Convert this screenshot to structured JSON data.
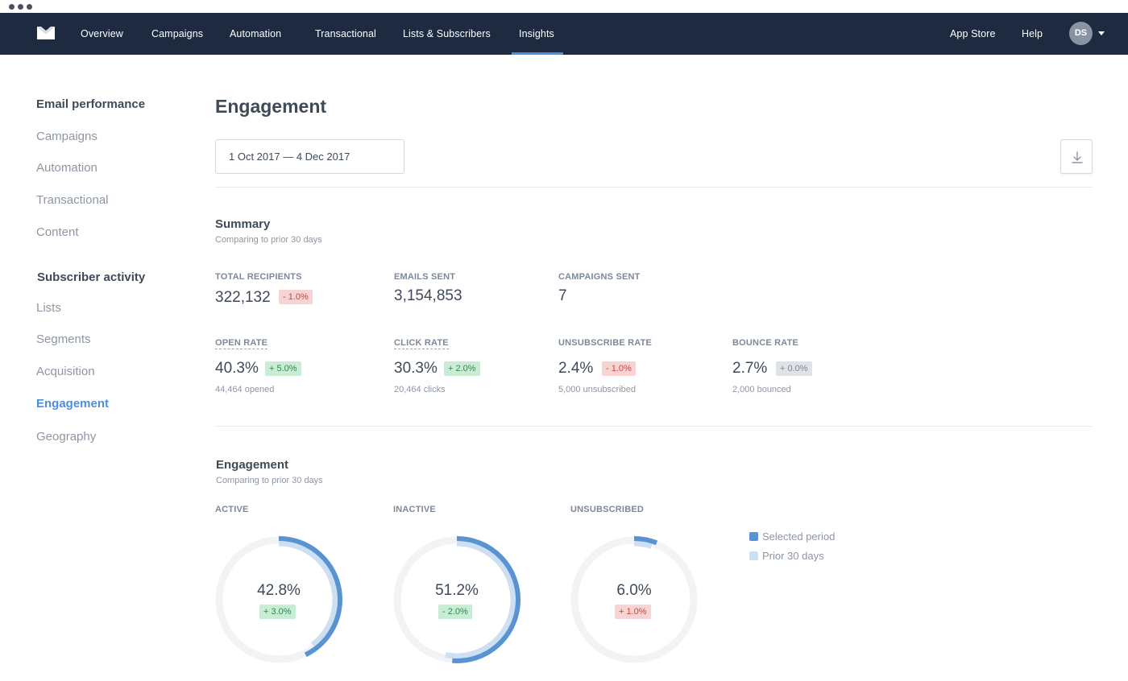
{
  "nav": {
    "items": [
      "Overview",
      "Campaigns",
      "Automation",
      "Transactional",
      "Lists & Subscribers",
      "Insights"
    ],
    "active": "Insights",
    "right": [
      "App Store",
      "Help"
    ],
    "avatar_initials": "DS"
  },
  "sidebar": {
    "email_heading": "Email performance",
    "email_items": [
      "Campaigns",
      "Automation",
      "Transactional",
      "Content"
    ],
    "subscriber_heading": "Subscriber activity",
    "subscriber_items": [
      "Lists",
      "Segments",
      "Acquisition",
      "Engagement",
      "Geography"
    ],
    "active_item": "Engagement"
  },
  "page": {
    "title": "Engagement",
    "date_range": "1 Oct 2017  —  4 Dec 2017"
  },
  "summary": {
    "title": "Summary",
    "subtitle": "Comparing to prior 30 days",
    "metrics": [
      {
        "label": "TOTAL RECIPIENTS",
        "value": "322,132",
        "badge": "- 1.0%",
        "badge_tone": "red",
        "sub": ""
      },
      {
        "label": "EMAILS SENT",
        "value": "3,154,853",
        "badge": "",
        "badge_tone": "",
        "sub": ""
      },
      {
        "label": "CAMPAIGNS SENT",
        "value": "7",
        "badge": "",
        "badge_tone": "",
        "sub": ""
      },
      {
        "label": "OPEN RATE",
        "value": "40.3%",
        "badge": "+ 5.0%",
        "badge_tone": "green",
        "sub": "44,464 opened"
      },
      {
        "label": "CLICK RATE",
        "value": "30.3%",
        "badge": "+ 2.0%",
        "badge_tone": "green",
        "sub": "20,464 clicks"
      },
      {
        "label": "UNSUBSCRIBE RATE",
        "value": "2.4%",
        "badge": "- 1.0%",
        "badge_tone": "red",
        "sub": "5,000 unsubscribed"
      },
      {
        "label": "BOUNCE RATE",
        "value": "2.7%",
        "badge": "+ 0.0%",
        "badge_tone": "grey",
        "sub": "2,000 bounced"
      }
    ]
  },
  "engagement": {
    "title": "Engagement",
    "subtitle": "Comparing to prior 30 days",
    "donuts": [
      {
        "label": "ACTIVE",
        "value": "42.8%",
        "selected_pct": 42.8,
        "prior_pct": 39.8,
        "badge": "+ 3.0%",
        "badge_tone": "green"
      },
      {
        "label": "INACTIVE",
        "value": "51.2%",
        "selected_pct": 51.2,
        "prior_pct": 53.2,
        "badge": "- 2.0%",
        "badge_tone": "green"
      },
      {
        "label": "UNSUBSCRIBED",
        "value": "6.0%",
        "selected_pct": 6.0,
        "prior_pct": 5.0,
        "badge": "+ 1.0%",
        "badge_tone": "red"
      }
    ],
    "legend": [
      "Selected period",
      "Prior 30 days"
    ]
  },
  "colors": {
    "nav_bg": "#1d2a40",
    "accent": "#4a90d9",
    "selected_ring": "#5a93d2",
    "prior_ring": "#cde0f3",
    "track": "#f2f3f5"
  }
}
